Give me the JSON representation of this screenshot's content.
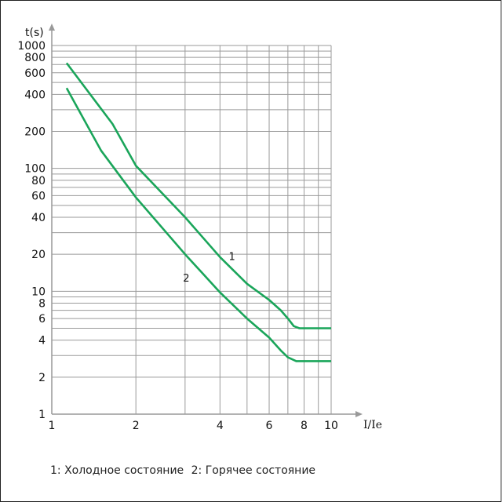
{
  "chart_data": {
    "type": "line",
    "title": "",
    "xlabel": "I/Ie",
    "ylabel": "t(s)",
    "x_scale": "log",
    "y_scale": "log",
    "xlim": [
      1,
      10
    ],
    "ylim": [
      1,
      1000
    ],
    "x_ticks": [
      1,
      2,
      4,
      6,
      8,
      10
    ],
    "y_ticks": [
      1,
      2,
      4,
      6,
      8,
      10,
      20,
      40,
      60,
      80,
      100,
      200,
      400,
      600,
      800,
      1000
    ],
    "x_minor_grid": [
      2,
      3,
      4,
      5,
      6,
      7,
      8,
      9,
      10
    ],
    "y_minor_grid": [
      2,
      3,
      4,
      5,
      6,
      7,
      8,
      9,
      10,
      20,
      30,
      40,
      50,
      60,
      70,
      80,
      90,
      100,
      200,
      300,
      400,
      500,
      600,
      700,
      800,
      900,
      1000
    ],
    "grid": true,
    "line_color": "#1aa55a",
    "series": [
      {
        "id": "1",
        "label": "1",
        "label_at": [
          4.3,
          18
        ],
        "x": [
          1.13,
          1.65,
          2.0,
          3.0,
          4.0,
          5.0,
          6.0,
          6.6,
          7.0,
          7.35,
          7.7,
          8.5,
          10.0
        ],
        "y": [
          720,
          230,
          105,
          40,
          19,
          11.5,
          8.5,
          7.0,
          6.0,
          5.2,
          5.0,
          5.0,
          5.0
        ]
      },
      {
        "id": "2",
        "label": "2",
        "label_at": [
          2.95,
          12
        ],
        "x": [
          1.13,
          1.5,
          2.0,
          3.0,
          4.0,
          5.0,
          6.0,
          6.6,
          7.0,
          7.5,
          8.5,
          10.0
        ],
        "y": [
          450,
          140,
          58,
          20,
          9.8,
          6.0,
          4.2,
          3.3,
          2.9,
          2.7,
          2.7,
          2.7
        ]
      }
    ]
  },
  "legend": {
    "item1": "1: Холодное состояние",
    "item2": "2: Горячее состояние"
  }
}
